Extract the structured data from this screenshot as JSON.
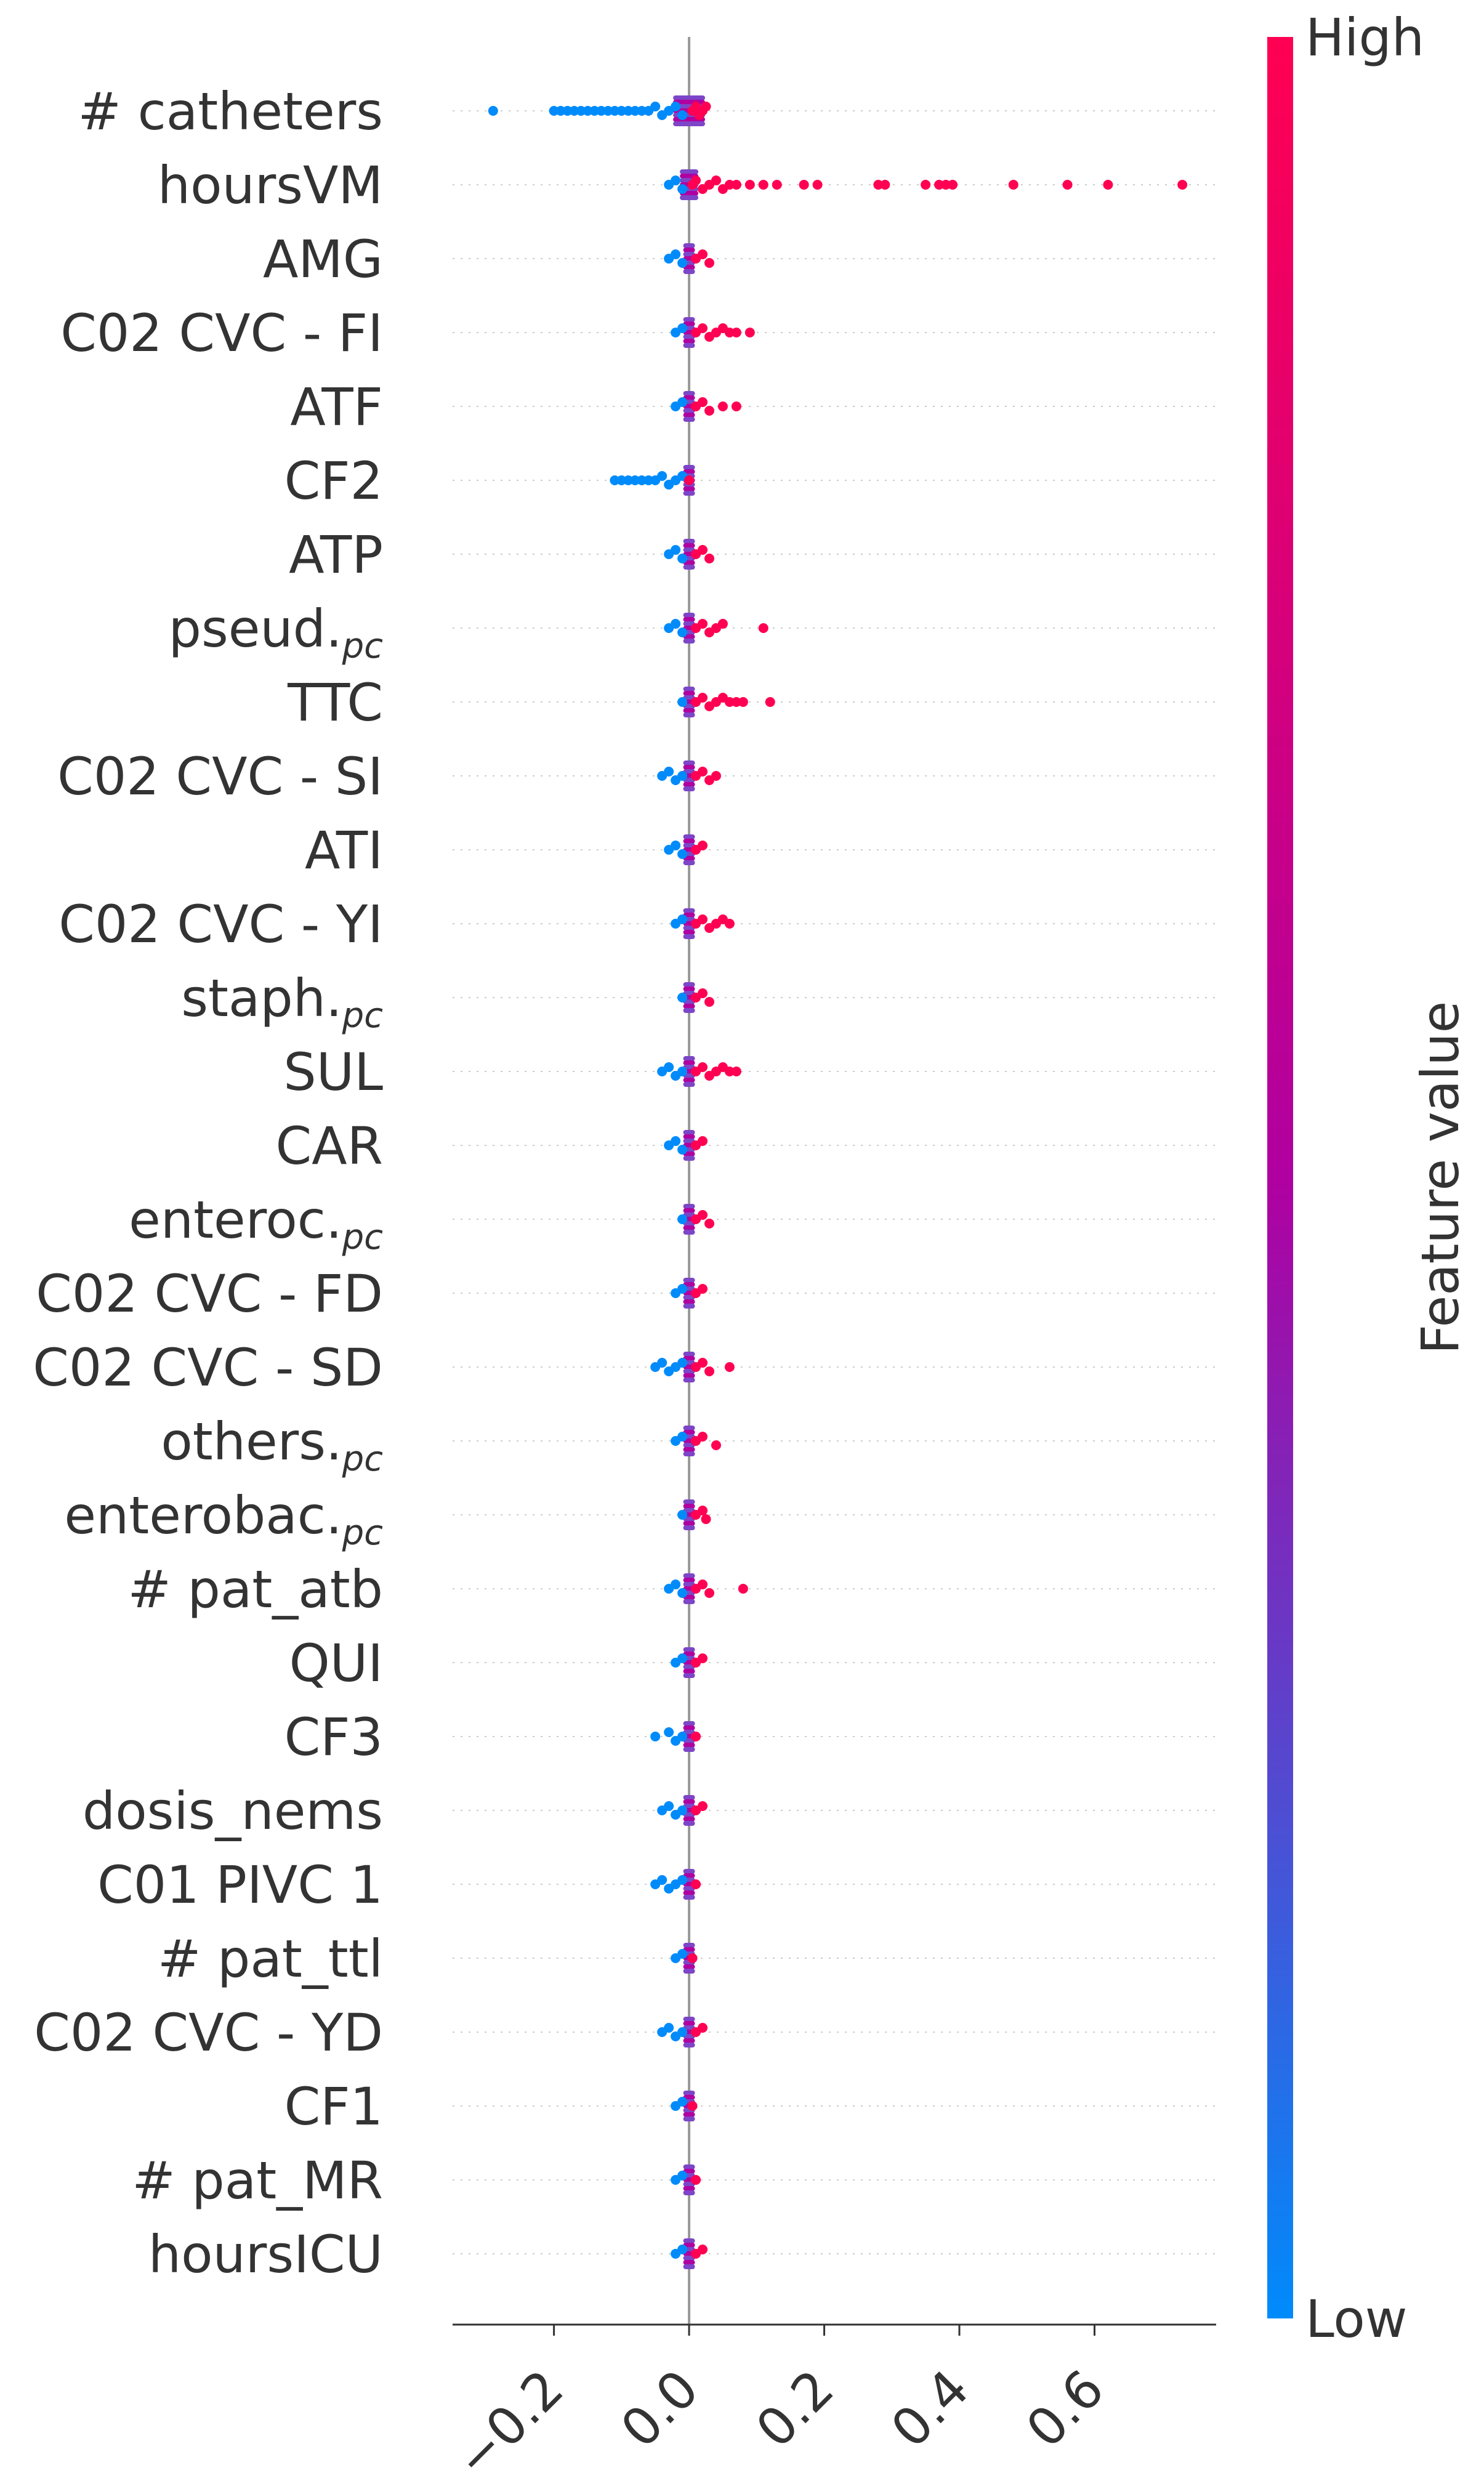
{
  "chart_data": {
    "type": "scatter",
    "subtype": "beeswarm",
    "xlabel": "",
    "xlim": [
      -0.35,
      0.78
    ],
    "xticks": [
      {
        "value": -0.2,
        "label": "−0.2"
      },
      {
        "value": 0.0,
        "label": "0.0"
      },
      {
        "value": 0.2,
        "label": "0.2"
      },
      {
        "value": 0.4,
        "label": "0.4"
      },
      {
        "value": 0.6,
        "label": "0.6"
      }
    ],
    "colorbar": {
      "label": "Feature value",
      "high": "High",
      "low": "Low",
      "low_color": "#008bfb",
      "mid_color": "#b000a0",
      "high_color": "#ff0052"
    },
    "features": [
      {
        "name": "# catheters",
        "sub": "",
        "low_points": [
          -0.29,
          -0.2,
          -0.19,
          -0.18,
          -0.17,
          -0.16,
          -0.15,
          -0.14,
          -0.13,
          -0.12,
          -0.11,
          -0.1,
          -0.09,
          -0.08,
          -0.07,
          -0.06,
          -0.05,
          -0.04,
          -0.03,
          -0.02,
          -0.01
        ],
        "high_points": [
          0.005,
          0.01,
          0.015,
          0.02,
          0.025
        ],
        "span": [
          -0.02,
          0.02
        ]
      },
      {
        "name": "hoursVM",
        "sub": "",
        "low_points": [
          -0.03,
          -0.02,
          -0.01
        ],
        "high_points": [
          0.005,
          0.01,
          0.02,
          0.03,
          0.04,
          0.05,
          0.06,
          0.07,
          0.09,
          0.11,
          0.13,
          0.17,
          0.19,
          0.28,
          0.29,
          0.35,
          0.37,
          0.38,
          0.39,
          0.48,
          0.56,
          0.62,
          0.73
        ],
        "span": [
          -0.01,
          0.01
        ]
      },
      {
        "name": "AMG",
        "sub": "",
        "low_points": [
          -0.03,
          -0.02,
          -0.01
        ],
        "high_points": [
          0.01,
          0.02,
          0.03
        ],
        "span": [
          -0.005,
          0.005
        ]
      },
      {
        "name": "C02 CVC - FI",
        "sub": "",
        "low_points": [
          -0.02,
          -0.01
        ],
        "high_points": [
          0.01,
          0.02,
          0.03,
          0.04,
          0.05,
          0.06,
          0.07,
          0.09
        ],
        "span": [
          -0.005,
          0.005
        ]
      },
      {
        "name": "ATF",
        "sub": "",
        "low_points": [
          -0.02,
          -0.01
        ],
        "high_points": [
          0.01,
          0.02,
          0.03,
          0.05,
          0.07
        ],
        "span": [
          -0.005,
          0.005
        ]
      },
      {
        "name": "CF2",
        "sub": "",
        "low_points": [
          -0.11,
          -0.1,
          -0.09,
          -0.08,
          -0.07,
          -0.06,
          -0.05,
          -0.04,
          -0.03,
          -0.02,
          -0.01
        ],
        "high_points": [
          0.0
        ],
        "span": [
          -0.005,
          0.005
        ]
      },
      {
        "name": "ATP",
        "sub": "",
        "low_points": [
          -0.03,
          -0.02,
          -0.01
        ],
        "high_points": [
          0.01,
          0.02,
          0.03
        ],
        "span": [
          -0.005,
          0.005
        ]
      },
      {
        "name": "pseud.",
        "sub": "pc",
        "low_points": [
          -0.03,
          -0.02,
          -0.01
        ],
        "high_points": [
          0.01,
          0.02,
          0.03,
          0.04,
          0.05,
          0.11
        ],
        "span": [
          -0.005,
          0.005
        ]
      },
      {
        "name": "TTC",
        "sub": "",
        "low_points": [
          -0.01
        ],
        "high_points": [
          0.01,
          0.02,
          0.03,
          0.04,
          0.05,
          0.06,
          0.07,
          0.08,
          0.12
        ],
        "span": [
          -0.005,
          0.005
        ]
      },
      {
        "name": "C02 CVC - SI",
        "sub": "",
        "low_points": [
          -0.04,
          -0.03,
          -0.02,
          -0.01
        ],
        "high_points": [
          0.01,
          0.02,
          0.03,
          0.04
        ],
        "span": [
          -0.005,
          0.005
        ]
      },
      {
        "name": "ATI",
        "sub": "",
        "low_points": [
          -0.03,
          -0.02,
          -0.01
        ],
        "high_points": [
          0.01,
          0.02
        ],
        "span": [
          -0.005,
          0.005
        ]
      },
      {
        "name": "C02 CVC - YI",
        "sub": "",
        "low_points": [
          -0.02,
          -0.01
        ],
        "high_points": [
          0.01,
          0.02,
          0.03,
          0.04,
          0.05,
          0.06
        ],
        "span": [
          -0.005,
          0.005
        ]
      },
      {
        "name": "staph.",
        "sub": "pc",
        "low_points": [
          -0.01
        ],
        "high_points": [
          0.01,
          0.02,
          0.03
        ],
        "span": [
          -0.005,
          0.005
        ]
      },
      {
        "name": "SUL",
        "sub": "",
        "low_points": [
          -0.04,
          -0.03,
          -0.02,
          -0.01
        ],
        "high_points": [
          0.01,
          0.02,
          0.03,
          0.04,
          0.05,
          0.06,
          0.07
        ],
        "span": [
          -0.005,
          0.005
        ]
      },
      {
        "name": "CAR",
        "sub": "",
        "low_points": [
          -0.03,
          -0.02,
          -0.01
        ],
        "high_points": [
          0.01,
          0.02
        ],
        "span": [
          -0.005,
          0.005
        ]
      },
      {
        "name": "enteroc.",
        "sub": "pc",
        "low_points": [
          -0.01
        ],
        "high_points": [
          0.01,
          0.02,
          0.03
        ],
        "span": [
          -0.005,
          0.005
        ]
      },
      {
        "name": "C02 CVC - FD",
        "sub": "",
        "low_points": [
          -0.02,
          -0.01
        ],
        "high_points": [
          0.01,
          0.02
        ],
        "span": [
          -0.005,
          0.005
        ]
      },
      {
        "name": "C02 CVC - SD",
        "sub": "",
        "low_points": [
          -0.05,
          -0.04,
          -0.03,
          -0.02,
          -0.01
        ],
        "high_points": [
          0.01,
          0.02,
          0.03,
          0.06
        ],
        "span": [
          -0.005,
          0.005
        ]
      },
      {
        "name": "others.",
        "sub": "pc",
        "low_points": [
          -0.02,
          -0.01
        ],
        "high_points": [
          0.01,
          0.02,
          0.04
        ],
        "span": [
          -0.005,
          0.005
        ]
      },
      {
        "name": "enterobac.",
        "sub": "pc",
        "low_points": [
          -0.01
        ],
        "high_points": [
          0.01,
          0.02,
          0.025
        ],
        "span": [
          -0.005,
          0.005
        ]
      },
      {
        "name": "# pat_atb",
        "sub": "",
        "low_points": [
          -0.03,
          -0.02,
          -0.01
        ],
        "high_points": [
          0.01,
          0.02,
          0.03,
          0.08
        ],
        "span": [
          -0.005,
          0.005
        ]
      },
      {
        "name": "QUI",
        "sub": "",
        "low_points": [
          -0.02,
          -0.01
        ],
        "high_points": [
          0.01,
          0.02
        ],
        "span": [
          -0.005,
          0.005
        ]
      },
      {
        "name": "CF3",
        "sub": "",
        "low_points": [
          -0.05,
          -0.03,
          -0.02,
          -0.01
        ],
        "high_points": [
          0.01
        ],
        "span": [
          -0.005,
          0.005
        ]
      },
      {
        "name": "dosis_nems",
        "sub": "",
        "low_points": [
          -0.04,
          -0.03,
          -0.02,
          -0.01
        ],
        "high_points": [
          0.01,
          0.02
        ],
        "span": [
          -0.005,
          0.005
        ]
      },
      {
        "name": "C01 PIVC 1",
        "sub": "",
        "low_points": [
          -0.05,
          -0.04,
          -0.03,
          -0.02,
          -0.01
        ],
        "high_points": [
          0.01
        ],
        "span": [
          -0.005,
          0.005
        ]
      },
      {
        "name": "# pat_ttl",
        "sub": "",
        "low_points": [
          -0.02,
          -0.01
        ],
        "high_points": [
          0.005
        ],
        "span": [
          -0.005,
          0.005
        ]
      },
      {
        "name": "C02 CVC - YD",
        "sub": "",
        "low_points": [
          -0.04,
          -0.03,
          -0.02,
          -0.01
        ],
        "high_points": [
          0.01,
          0.02
        ],
        "span": [
          -0.005,
          0.005
        ]
      },
      {
        "name": "CF1",
        "sub": "",
        "low_points": [
          -0.02,
          -0.01
        ],
        "high_points": [
          0.005
        ],
        "span": [
          -0.005,
          0.005
        ]
      },
      {
        "name": "# pat_MR",
        "sub": "",
        "low_points": [
          -0.02,
          -0.01
        ],
        "high_points": [
          0.01
        ],
        "span": [
          -0.005,
          0.005
        ]
      },
      {
        "name": "hoursICU",
        "sub": "",
        "low_points": [
          -0.02,
          -0.01
        ],
        "high_points": [
          0.01,
          0.02
        ],
        "span": [
          -0.005,
          0.005
        ]
      }
    ]
  }
}
